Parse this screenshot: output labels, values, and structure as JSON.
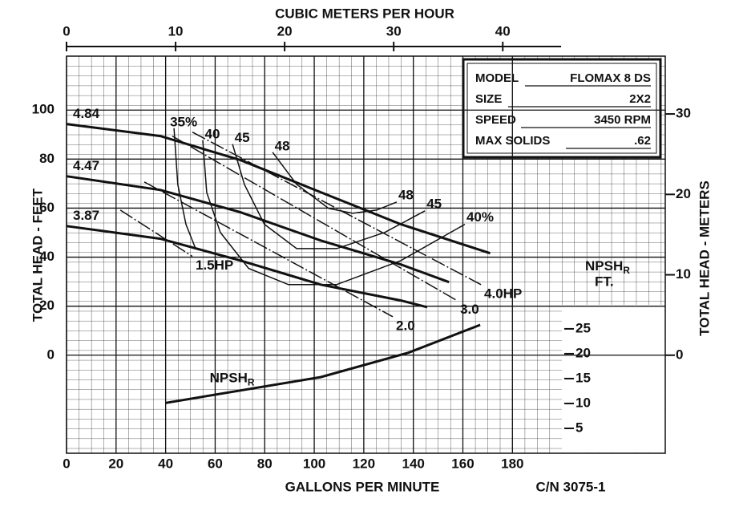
{
  "chart_data": {
    "type": "line",
    "title": "CUBIC METERS PER HOUR",
    "x_label": "GALLONS PER MINUTE",
    "y_label": "TOTAL HEAD - FEET",
    "y2_label": "TOTAL HEAD - METERS",
    "catalog_number": "C/N 3075-1",
    "xlim": [
      0,
      241.7
    ],
    "xticks": [
      0,
      20,
      40,
      60,
      80,
      100,
      120,
      140,
      160,
      180
    ],
    "x2lim": [
      0,
      54.9
    ],
    "x2ticks": [
      0,
      10,
      20,
      30,
      40
    ],
    "ylim": [
      -40,
      122
    ],
    "yticks": [
      0,
      20,
      40,
      60,
      80,
      100
    ],
    "y2lim": [
      -12.19,
      37.19
    ],
    "y2ticks": [
      0,
      10,
      20,
      30
    ],
    "npsh_axis": {
      "label": "NPSH",
      "label_sub": "R",
      "unit": "FT.",
      "lim": [
        0,
        79.8
      ],
      "ticks": [
        5,
        10,
        15,
        20,
        25
      ]
    },
    "grid": true,
    "model_box": {
      "rows": [
        [
          "MODEL",
          "FLOMAX 8 DS"
        ],
        [
          "SIZE",
          "2X2"
        ],
        [
          "SPEED",
          "3450 RPM"
        ],
        [
          "MAX SOLIDS",
          ".62"
        ]
      ]
    },
    "series": [
      {
        "name": "4.84",
        "kind": "head",
        "color": "#111",
        "x": [
          0,
          37.9,
          70.2,
          102.6,
          135,
          171
        ],
        "values": [
          94.3,
          89.4,
          79.6,
          66.5,
          53.4,
          41.6
        ]
      },
      {
        "name": "4.47",
        "kind": "head",
        "color": "#111",
        "x": [
          0,
          37.9,
          70.2,
          102.6,
          135,
          154.4
        ],
        "values": [
          73,
          67.4,
          58.3,
          46.8,
          37,
          29.8
        ]
      },
      {
        "name": "3.87",
        "kind": "head",
        "color": "#111",
        "x": [
          0,
          37.9,
          70.2,
          102.6,
          135,
          145.6
        ],
        "values": [
          52.7,
          47.5,
          38.6,
          28.8,
          22.3,
          19.6
        ]
      },
      {
        "name": "35%",
        "kind": "efficiency",
        "color": "#111",
        "x": [
          43.4,
          44.9,
          48.2,
          52.1
        ],
        "values": [
          92.6,
          69.7,
          53.4,
          43.5
        ]
      },
      {
        "name": "40",
        "end_label": "40%",
        "kind": "efficiency",
        "color": "#111",
        "x": [
          55,
          56.6,
          62.1,
          73.5,
          89.6,
          109,
          135,
          160.8
        ],
        "values": [
          87.7,
          66.4,
          50.1,
          35.4,
          28.8,
          28.8,
          38.6,
          53.4
        ]
      },
      {
        "name": "45",
        "end_label": "45",
        "kind": "efficiency",
        "color": "#111",
        "x": [
          67,
          71.8,
          79.9,
          92.9,
          109,
          128.5,
          144.7
        ],
        "values": [
          86.1,
          69.7,
          53.4,
          43.5,
          43.5,
          50.1,
          58.9
        ]
      },
      {
        "name": "48",
        "end_label": "48",
        "kind": "efficiency",
        "color": "#111",
        "x": [
          83.2,
          92.9,
          105.8,
          115.5,
          125.2,
          133.3
        ],
        "values": [
          82.8,
          69.7,
          59.9,
          57.9,
          59.2,
          62.5
        ]
      },
      {
        "name": "1.5HP",
        "kind": "power",
        "color": "#111",
        "x": [
          21.7,
          50.8
        ],
        "values": [
          59.2,
          40.3
        ]
      },
      {
        "name": "2.0",
        "kind": "power",
        "color": "#111",
        "x": [
          31.4,
          131.7
        ],
        "values": [
          70.7,
          15.7
        ]
      },
      {
        "name": "3.0",
        "kind": "power",
        "color": "#111",
        "x": [
          42.7,
          157.6
        ],
        "values": [
          89.4,
          22.3
        ]
      },
      {
        "name": "4.0HP",
        "kind": "power",
        "color": "#111",
        "x": [
          50.8,
          167.3
        ],
        "values": [
          91,
          28.8
        ]
      },
      {
        "name": "NPSH",
        "name_sub": "R",
        "kind": "npsh",
        "axis": "npsh",
        "color": "#111",
        "x": [
          40,
          102.6,
          138,
          167
        ],
        "values": [
          10.1,
          15.3,
          20.2,
          25.8
        ]
      }
    ]
  }
}
